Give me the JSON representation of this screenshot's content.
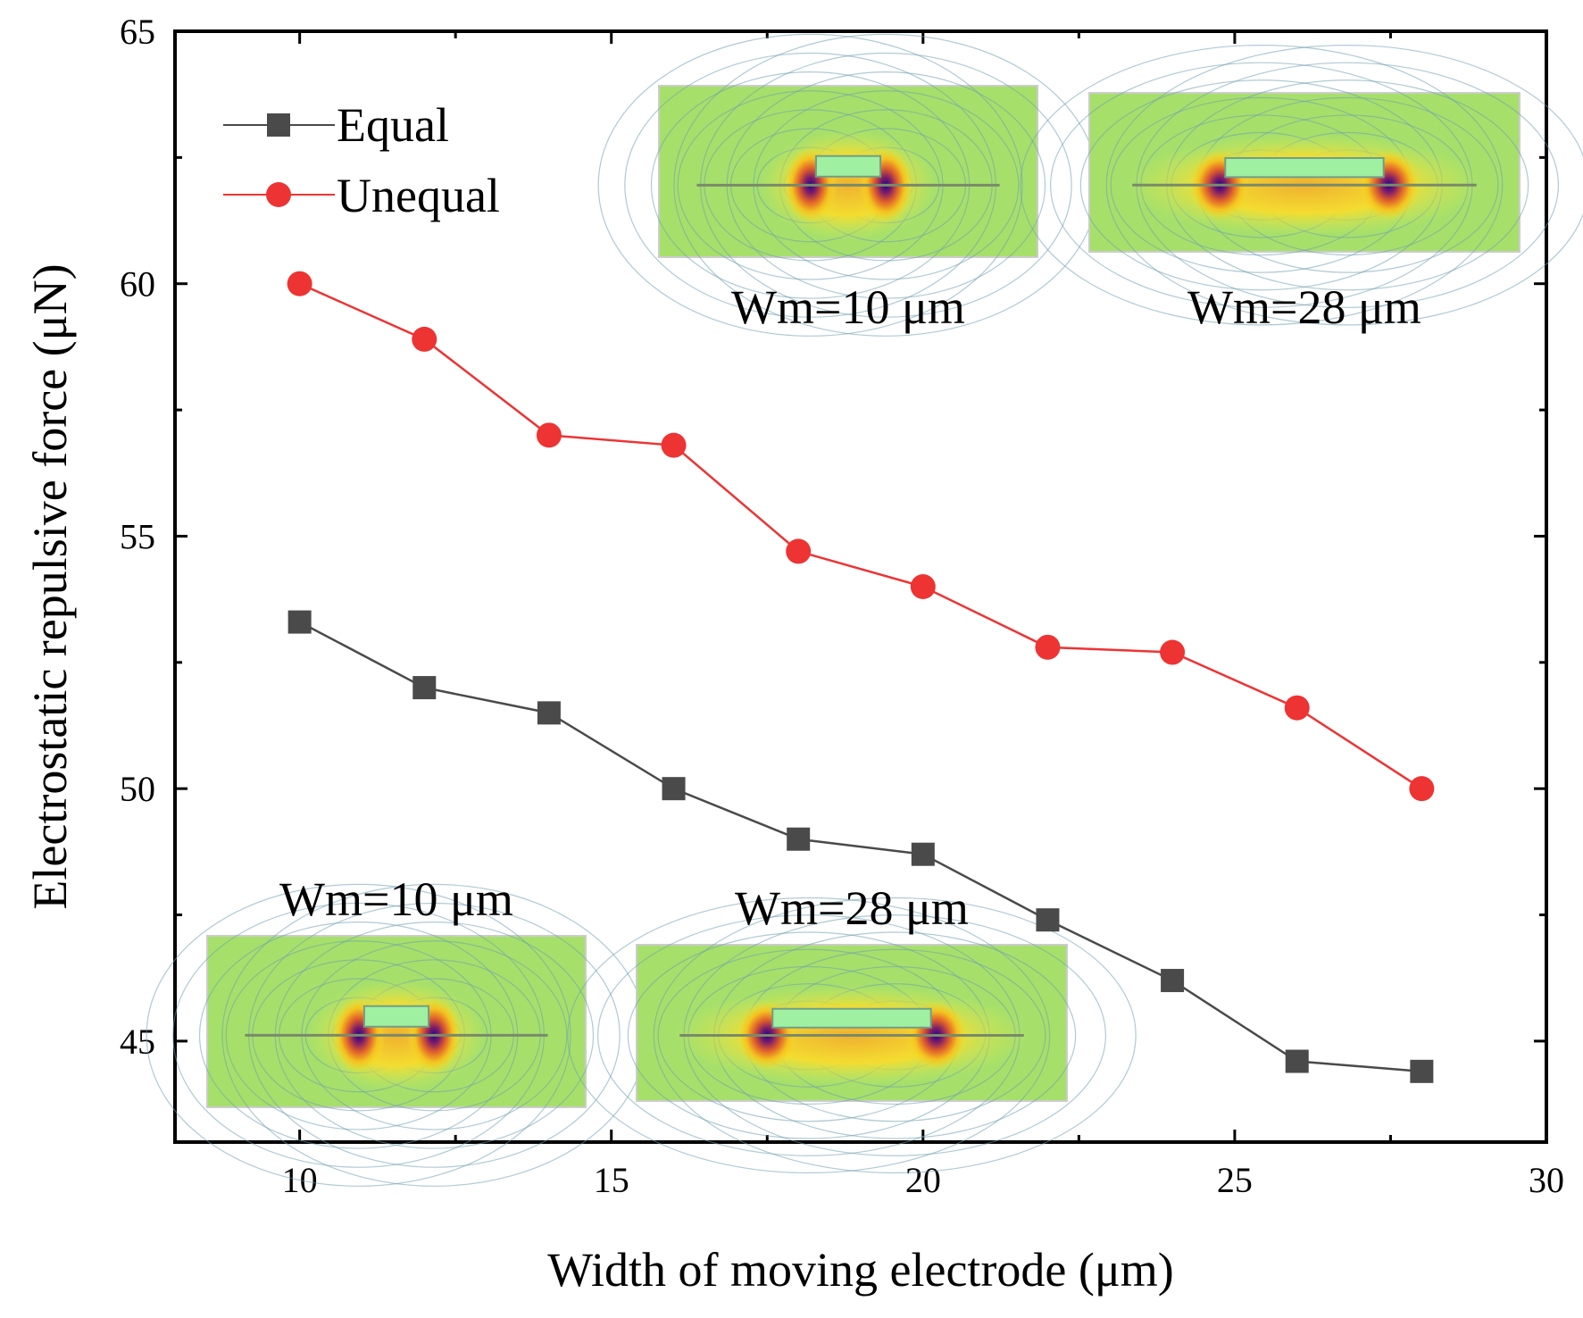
{
  "chart_data": {
    "type": "line",
    "xlabel": "Width of moving electrode (μm)",
    "ylabel": "Electrostatic repulsive force (μN)",
    "xlim": [
      8,
      30
    ],
    "ylim": [
      43,
      65
    ],
    "x_ticks": [
      10,
      15,
      20,
      25,
      30
    ],
    "y_ticks": [
      45,
      50,
      55,
      60,
      65
    ],
    "x_tick_labels": [
      "10",
      "15",
      "20",
      "25",
      "30"
    ],
    "y_tick_labels": [
      "45",
      "50",
      "55",
      "60",
      "65"
    ],
    "legend_position": "top-left",
    "series": [
      {
        "name": "Equal",
        "marker": "square",
        "color": "#4a4a4a",
        "x": [
          10,
          12,
          14,
          16,
          18,
          20,
          22,
          24,
          26,
          28
        ],
        "values": [
          53.3,
          52.0,
          51.5,
          50.0,
          49.0,
          48.7,
          47.4,
          46.2,
          44.6,
          44.4
        ]
      },
      {
        "name": "Unequal",
        "marker": "circle",
        "color": "#ee3333",
        "x": [
          10,
          12,
          14,
          16,
          18,
          20,
          22,
          24,
          26,
          28
        ],
        "values": [
          60.0,
          58.9,
          57.0,
          56.8,
          54.7,
          54.0,
          52.8,
          52.7,
          51.6,
          50.0
        ]
      }
    ],
    "insets": [
      {
        "id": "unequal-10",
        "caption": "Wm=10 μm",
        "group": "Unequal",
        "electrode_width": 10
      },
      {
        "id": "unequal-28",
        "caption": "Wm=28 μm",
        "group": "Unequal",
        "electrode_width": 28
      },
      {
        "id": "equal-10",
        "caption": "Wm=10 μm",
        "group": "Equal",
        "electrode_width": 10
      },
      {
        "id": "equal-28",
        "caption": "Wm=28 μm",
        "group": "Equal",
        "electrode_width": 28
      }
    ]
  }
}
